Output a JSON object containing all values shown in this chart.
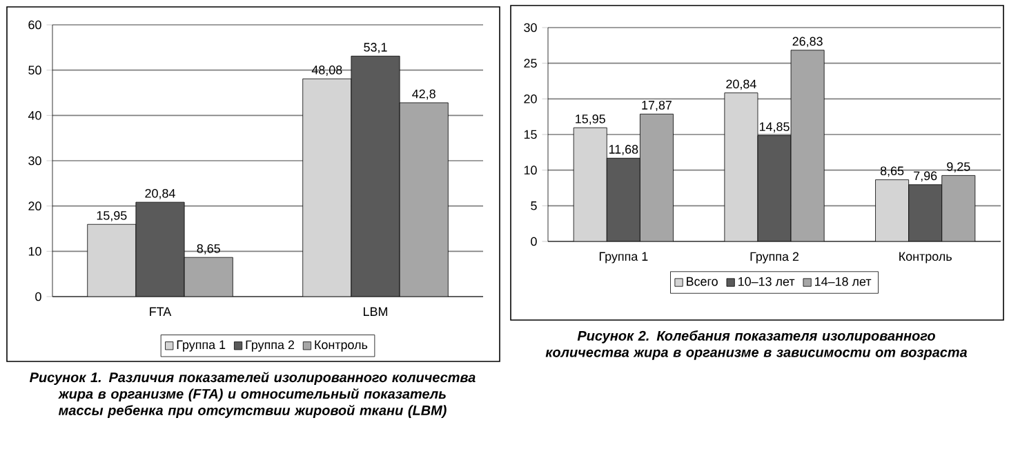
{
  "chart_data": [
    {
      "type": "bar",
      "title": "Рисунок 1. Различия показателей изолированного количества жира в организме (FTA) и относительный показатель массы ребенка при отсутствии жировой ткани (LBM)",
      "categories": [
        "FTA",
        "LBM"
      ],
      "series": [
        {
          "name": "Группа 1",
          "color": "#d4d4d4",
          "values": [
            15.95,
            48.08
          ],
          "value_labels": [
            "15,95",
            "48,08"
          ]
        },
        {
          "name": "Группа 2",
          "color": "#5a5a5a",
          "values": [
            20.84,
            53.1
          ],
          "value_labels": [
            "20,84",
            "53,1"
          ]
        },
        {
          "name": "Контроль",
          "color": "#a6a6a6",
          "values": [
            8.65,
            42.8
          ],
          "value_labels": [
            "8,65",
            "42,8"
          ]
        }
      ],
      "ylim": [
        0,
        60
      ],
      "yticks": [
        0,
        10,
        20,
        30,
        40,
        50,
        60
      ],
      "grid": "y",
      "legend": "bottom"
    },
    {
      "type": "bar",
      "title": "Рисунок 2. Колебания показателя изолированного количества жира в организме в зависимости от возраста",
      "categories": [
        "Группа 1",
        "Группа 2",
        "Контроль"
      ],
      "series": [
        {
          "name": "Всего",
          "color": "#d4d4d4",
          "values": [
            15.95,
            20.84,
            8.65
          ],
          "value_labels": [
            "15,95",
            "20,84",
            "8,65"
          ]
        },
        {
          "name": "10–13 лет",
          "color": "#5a5a5a",
          "values": [
            11.68,
            14.85,
            7.96
          ],
          "value_labels": [
            "11,68",
            "14,85",
            "7,96"
          ]
        },
        {
          "name": "14–18 лет",
          "color": "#a6a6a6",
          "values": [
            17.87,
            26.83,
            9.25
          ],
          "value_labels": [
            "17,87",
            "26,83",
            "9,25"
          ]
        }
      ],
      "ylim": [
        0,
        30
      ],
      "yticks": [
        0,
        5,
        10,
        15,
        20,
        25,
        30
      ],
      "grid": "y",
      "legend": "bottom"
    }
  ]
}
